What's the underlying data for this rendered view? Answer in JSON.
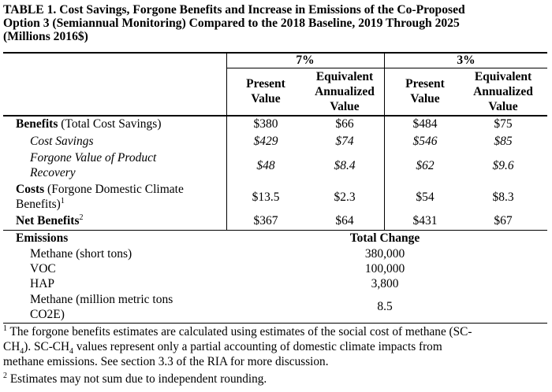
{
  "title": {
    "line1": "TABLE 1. Cost Savings, Forgone Benefits and Increase in Emissions of the Co-Proposed",
    "line2": "Option 3 (Semiannual Monitoring) Compared to the 2018 Baseline, 2019 Through 2025",
    "line3": "(Millions 2016$)"
  },
  "header": {
    "group_7": "7%",
    "group_3": "3%",
    "pv": [
      "Present",
      "Value"
    ],
    "eav": [
      "Equivalent",
      "Annualized",
      "Value"
    ]
  },
  "rows": {
    "benefits": {
      "label_bold": "Benefits",
      "label_rest": " (Total Cost Savings)",
      "values": [
        "$380",
        "$66",
        "$484",
        "$75"
      ]
    },
    "cost_savings": {
      "label": "Cost Savings",
      "values": [
        "$429",
        "$74",
        "$546",
        "$85"
      ]
    },
    "forgone": {
      "label_line1": "Forgone Value of Product",
      "label_line2": "Recovery",
      "values": [
        "$48",
        "$8.4",
        "$62",
        "$9.6"
      ]
    },
    "costs": {
      "label_bold": "Costs",
      "label_rest": " (Forgone Domestic Climate",
      "label_line2": "Benefits)",
      "sup": "1",
      "values": [
        "$13.5",
        "$2.3",
        "$54",
        "$8.3"
      ]
    },
    "net": {
      "label": "Net Benefits",
      "sup": "2",
      "values": [
        "$367",
        "$64",
        "$431",
        "$67"
      ]
    }
  },
  "emissions": {
    "label": "Emissions",
    "total_change_header": "Total Change",
    "items": [
      {
        "label": "Methane (short tons)",
        "value": "380,000"
      },
      {
        "label": "VOC",
        "value": "100,000"
      },
      {
        "label": "HAP",
        "value": "3,800"
      }
    ],
    "methane_mmt": {
      "label_line1": "Methane (million metric tons",
      "label_line2": "CO2E)",
      "value": "8.5"
    }
  },
  "footnotes": {
    "fn1_mark": "1",
    "fn1_a": " The forgone benefits estimates are calculated using estimates of the social cost of methane (SC-",
    "fn1_b1": "CH",
    "fn1_b_sub": "4",
    "fn1_b2": "). SC-CH",
    "fn1_b_sub2": "4",
    "fn1_b3": " values represent only a partial accounting of domestic climate impacts from",
    "fn1_c": "methane emissions. See section 3.3 of the RIA for more discussion.",
    "fn2_mark": "2",
    "fn2": " Estimates may not sum due to independent rounding."
  }
}
